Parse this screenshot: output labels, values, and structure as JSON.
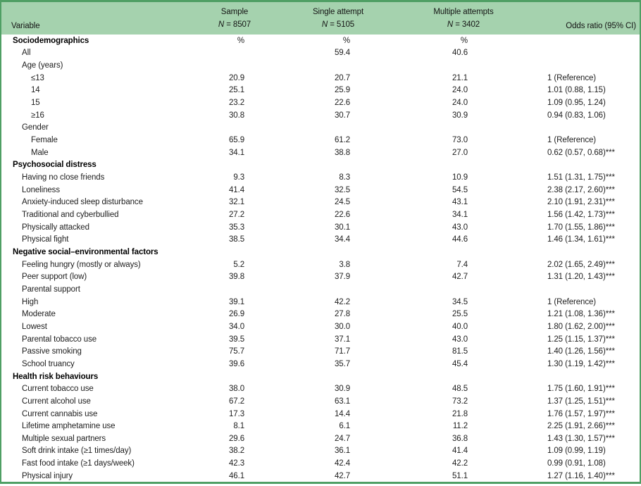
{
  "table": {
    "header": {
      "variable_label": "Variable",
      "sample": {
        "label": "Sample",
        "n_italic": "N",
        "n_rest": " = 8507"
      },
      "single": {
        "label": "Single attempt",
        "n_italic": "N",
        "n_rest": " = 5105"
      },
      "multiple": {
        "label": "Multiple attempts",
        "n_italic": "N",
        "n_rest": " = 3402"
      },
      "odds_ratio_label": "Odds ratio (95% CI)"
    },
    "colors": {
      "border_green": "#4f9f64",
      "header_band_green": "#a5d2ae",
      "body_text": "#1d1d1d"
    },
    "rows": [
      {
        "label": "Sociodemographics",
        "indent": 0,
        "bold": true,
        "sample": "%",
        "single": "%",
        "multiple": "%",
        "or": ""
      },
      {
        "label": "All",
        "indent": 1,
        "bold": false,
        "sample": "",
        "single": "59.4",
        "multiple": "40.6",
        "or": ""
      },
      {
        "label": "Age (years)",
        "indent": 1,
        "bold": false,
        "sample": "",
        "single": "",
        "multiple": "",
        "or": ""
      },
      {
        "label": "≤13",
        "indent": 2,
        "bold": false,
        "sample": "20.9",
        "single": "20.7",
        "multiple": "21.1",
        "or": "1 (Reference)"
      },
      {
        "label": "14",
        "indent": 2,
        "bold": false,
        "sample": "25.1",
        "single": "25.9",
        "multiple": "24.0",
        "or": "1.01 (0.88, 1.15)"
      },
      {
        "label": "15",
        "indent": 2,
        "bold": false,
        "sample": "23.2",
        "single": "22.6",
        "multiple": "24.0",
        "or": "1.09 (0.95, 1.24)"
      },
      {
        "label": "≥16",
        "indent": 2,
        "bold": false,
        "sample": "30.8",
        "single": "30.7",
        "multiple": "30.9",
        "or": "0.94 (0.83, 1.06)"
      },
      {
        "label": "Gender",
        "indent": 1,
        "bold": false,
        "sample": "",
        "single": "",
        "multiple": "",
        "or": ""
      },
      {
        "label": "Female",
        "indent": 2,
        "bold": false,
        "sample": "65.9",
        "single": "61.2",
        "multiple": "73.0",
        "or": "1 (Reference)"
      },
      {
        "label": "Male",
        "indent": 2,
        "bold": false,
        "sample": "34.1",
        "single": "38.8",
        "multiple": "27.0",
        "or": "0.62 (0.57, 0.68)***"
      },
      {
        "label": "Psychosocial distress",
        "indent": 0,
        "bold": true,
        "sample": "",
        "single": "",
        "multiple": "",
        "or": ""
      },
      {
        "label": "Having no close friends",
        "indent": 1,
        "bold": false,
        "sample": "9.3",
        "single": "8.3",
        "multiple": "10.9",
        "or": "1.51 (1.31, 1.75)***"
      },
      {
        "label": "Loneliness",
        "indent": 1,
        "bold": false,
        "sample": "41.4",
        "single": "32.5",
        "multiple": "54.5",
        "or": "2.38 (2.17, 2.60)***"
      },
      {
        "label": "Anxiety-induced sleep disturbance",
        "indent": 1,
        "bold": false,
        "sample": "32.1",
        "single": "24.5",
        "multiple": "43.1",
        "or": "2.10 (1.91, 2.31)***"
      },
      {
        "label": "Traditional and cyberbullied",
        "indent": 1,
        "bold": false,
        "sample": "27.2",
        "single": "22.6",
        "multiple": "34.1",
        "or": "1.56 (1.42, 1.73)***"
      },
      {
        "label": "Physically attacked",
        "indent": 1,
        "bold": false,
        "sample": "35.3",
        "single": "30.1",
        "multiple": "43.0",
        "or": "1.70 (1.55, 1.86)***"
      },
      {
        "label": "Physical fight",
        "indent": 1,
        "bold": false,
        "sample": "38.5",
        "single": "34.4",
        "multiple": "44.6",
        "or": "1.46 (1.34, 1.61)***"
      },
      {
        "label": "Negative social–environmental factors",
        "indent": 0,
        "bold": true,
        "sample": "",
        "single": "",
        "multiple": "",
        "or": ""
      },
      {
        "label": "Feeling hungry (mostly or always)",
        "indent": 1,
        "bold": false,
        "sample": "5.2",
        "single": "3.8",
        "multiple": "7.4",
        "or": "2.02 (1.65, 2.49)***"
      },
      {
        "label": "Peer support (low)",
        "indent": 1,
        "bold": false,
        "sample": "39.8",
        "single": "37.9",
        "multiple": "42.7",
        "or": "1.31 (1.20, 1.43)***"
      },
      {
        "label": "Parental support",
        "indent": 1,
        "bold": false,
        "sample": "",
        "single": "",
        "multiple": "",
        "or": ""
      },
      {
        "label": "High",
        "indent": 1,
        "bold": false,
        "sample": "39.1",
        "single": "42.2",
        "multiple": "34.5",
        "or": "1 (Reference)"
      },
      {
        "label": "Moderate",
        "indent": 1,
        "bold": false,
        "sample": "26.9",
        "single": "27.8",
        "multiple": "25.5",
        "or": "1.21 (1.08, 1.36)***"
      },
      {
        "label": "Lowest",
        "indent": 1,
        "bold": false,
        "sample": "34.0",
        "single": "30.0",
        "multiple": "40.0",
        "or": "1.80 (1.62, 2.00)***"
      },
      {
        "label": "Parental tobacco use",
        "indent": 1,
        "bold": false,
        "sample": "39.5",
        "single": "37.1",
        "multiple": "43.0",
        "or": "1.25 (1.15, 1.37)***"
      },
      {
        "label": "Passive smoking",
        "indent": 1,
        "bold": false,
        "sample": "75.7",
        "single": "71.7",
        "multiple": "81.5",
        "or": "1.40 (1.26, 1.56)***"
      },
      {
        "label": "School truancy",
        "indent": 1,
        "bold": false,
        "sample": "39.6",
        "single": "35.7",
        "multiple": "45.4",
        "or": "1.30 (1.19, 1.42)***"
      },
      {
        "label": "Health risk behaviours",
        "indent": 0,
        "bold": true,
        "sample": "",
        "single": "",
        "multiple": "",
        "or": ""
      },
      {
        "label": "Current tobacco use",
        "indent": 1,
        "bold": false,
        "sample": "38.0",
        "single": "30.9",
        "multiple": "48.5",
        "or": "1.75 (1.60, 1.91)***"
      },
      {
        "label": "Current alcohol use",
        "indent": 1,
        "bold": false,
        "sample": "67.2",
        "single": "63.1",
        "multiple": "73.2",
        "or": "1.37 (1.25, 1.51)***"
      },
      {
        "label": "Current cannabis use",
        "indent": 1,
        "bold": false,
        "sample": "17.3",
        "single": "14.4",
        "multiple": "21.8",
        "or": "1.76 (1.57, 1.97)***"
      },
      {
        "label": "Lifetime amphetamine use",
        "indent": 1,
        "bold": false,
        "sample": "8.1",
        "single": "6.1",
        "multiple": "11.2",
        "or": "2.25 (1.91, 2.66)***"
      },
      {
        "label": "Multiple sexual partners",
        "indent": 1,
        "bold": false,
        "sample": "29.6",
        "single": "24.7",
        "multiple": "36.8",
        "or": "1.43 (1.30, 1.57)***"
      },
      {
        "label": "Soft drink intake (≥1 times/day)",
        "indent": 1,
        "bold": false,
        "sample": "38.2",
        "single": "36.1",
        "multiple": "41.4",
        "or": "1.09 (0.99, 1.19)"
      },
      {
        "label": "Fast food intake (≥1 days/week)",
        "indent": 1,
        "bold": false,
        "sample": "42.3",
        "single": "42.4",
        "multiple": "42.2",
        "or": "0.99 (0.91, 1.08)"
      },
      {
        "label": "Physical injury",
        "indent": 1,
        "bold": false,
        "sample": "46.1",
        "single": "42.7",
        "multiple": "51.1",
        "or": "1.27 (1.16, 1.40)***"
      }
    ]
  }
}
